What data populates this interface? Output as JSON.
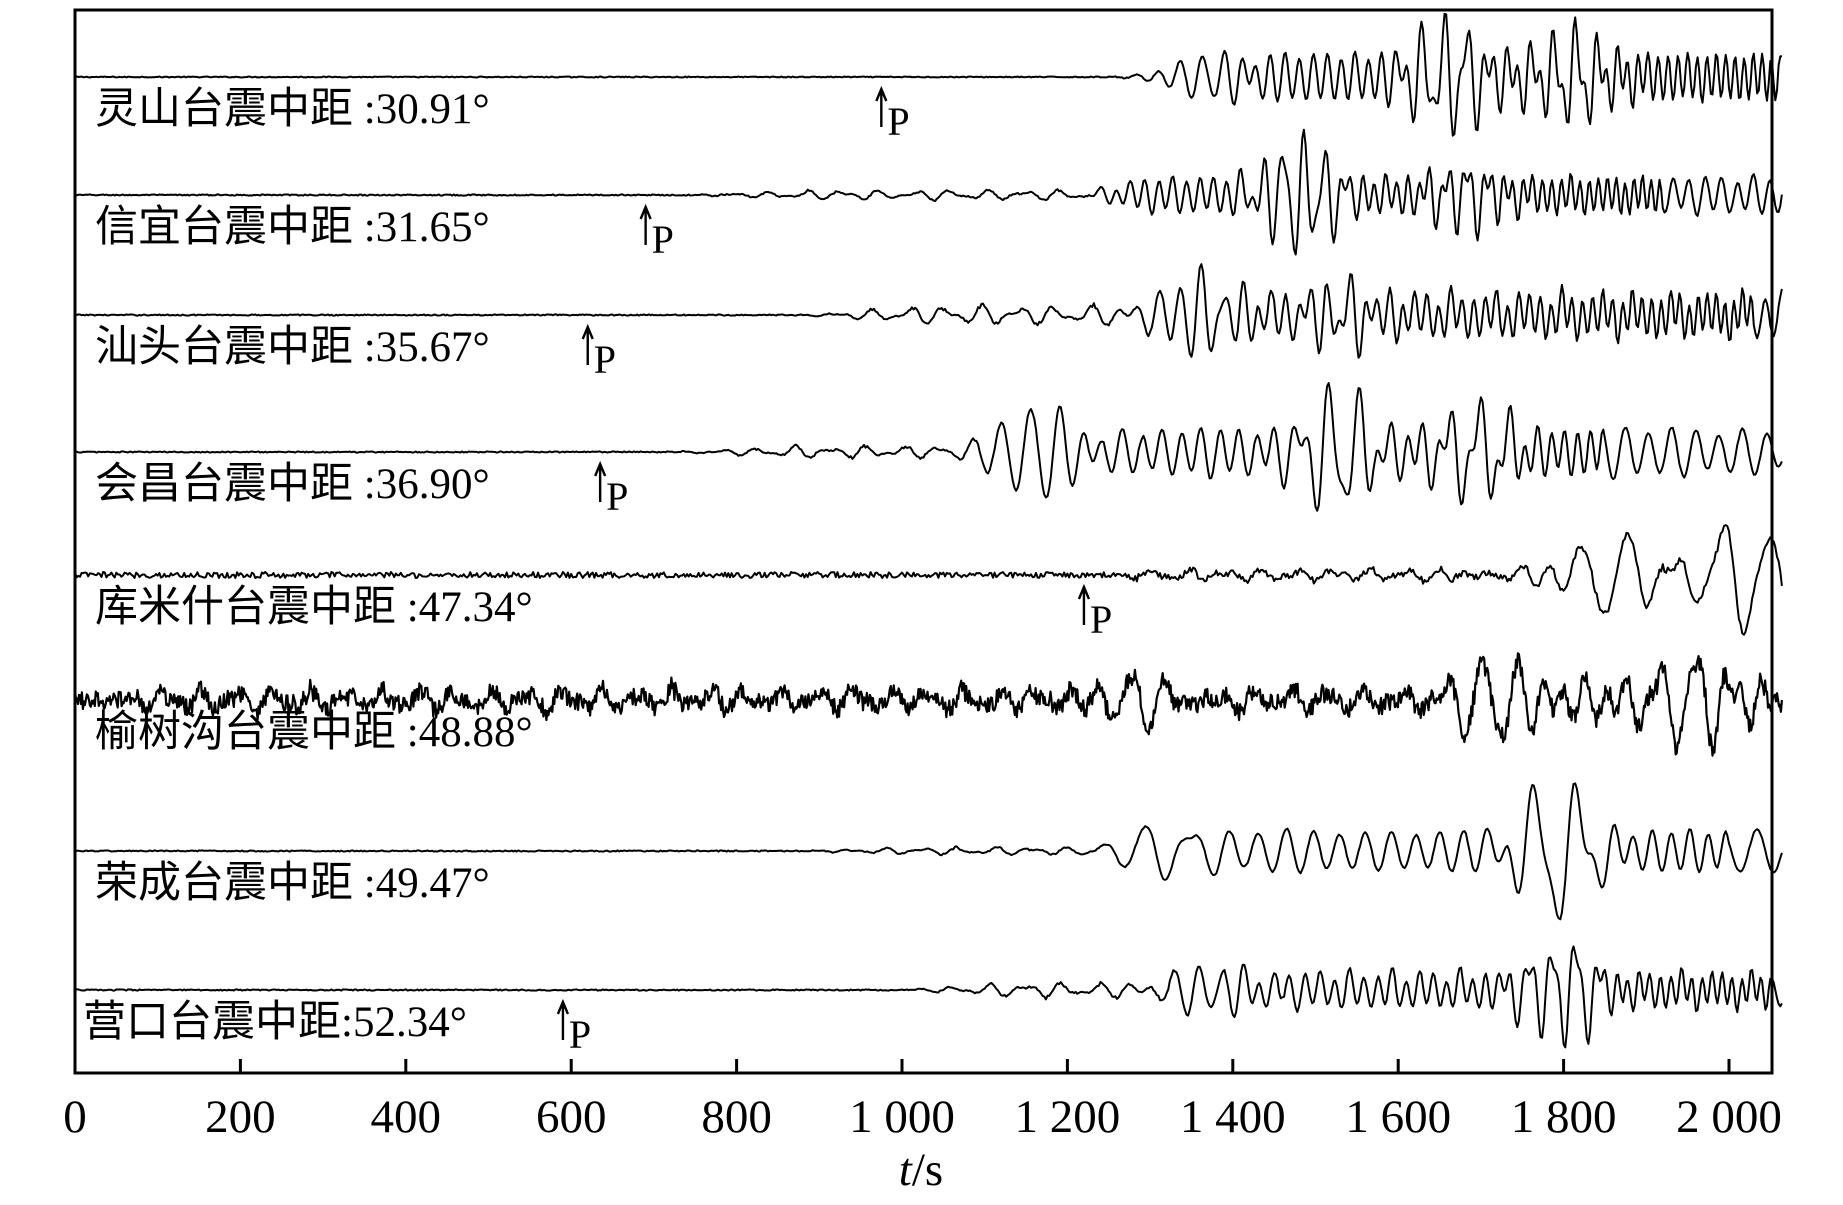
{
  "chart_data": {
    "type": "line",
    "xlabel_var": "t",
    "xlabel_unit": "/s",
    "xlim": [
      0,
      2100
    ],
    "xticks": [
      0,
      200,
      400,
      600,
      800,
      1000,
      1200,
      1400,
      1600,
      1800,
      2000
    ],
    "xtick_labels": [
      "0",
      "200",
      "400",
      "600",
      "800",
      "1 000",
      "1 200",
      "1 400",
      "1 600",
      "1 800",
      "2 000"
    ],
    "p_marker_text": "P",
    "traces": [
      {
        "label": "灵山台震中距 :30.91°",
        "p_arrival": 975,
        "onset": 1250,
        "surface": 1360,
        "surface_period": 28,
        "pre_amp": 3,
        "amp": 40,
        "noise": 0.5,
        "bursts": [
          [
            1370,
            22
          ],
          [
            1660,
            48
          ],
          [
            1810,
            38
          ]
        ]
      },
      {
        "label": "信宜台震中距 :31.65°",
        "p_arrival": 690,
        "onset": 740,
        "surface": 1220,
        "surface_period": 26,
        "pre_amp": 4,
        "amp": 30,
        "noise": 0.6,
        "bursts": [
          [
            1480,
            50
          ],
          [
            1680,
            30
          ]
        ]
      },
      {
        "label": "汕头台震中距 :35.67°",
        "p_arrival": 620,
        "onset": 880,
        "surface": 1330,
        "surface_period": 27,
        "pre_amp": 8,
        "amp": 34,
        "noise": 0.6,
        "bursts": [
          [
            1360,
            38
          ],
          [
            1530,
            30
          ]
        ]
      },
      {
        "label": "会昌台震中距 :36.90°",
        "p_arrival": 635,
        "onset": 720,
        "surface": 1150,
        "surface_period": 38,
        "pre_amp": 5,
        "amp": 38,
        "noise": 0.6,
        "bursts": [
          [
            1160,
            50
          ],
          [
            1530,
            58
          ],
          [
            1700,
            42
          ]
        ]
      },
      {
        "label": "库米什台震中距 :47.34°",
        "p_arrival": 1220,
        "onset": 1210,
        "surface": 1620,
        "surface_period": 60,
        "pre_amp": 5,
        "amp": 12,
        "noise": 3,
        "bursts": [
          [
            1860,
            40
          ],
          [
            2010,
            55
          ]
        ]
      },
      {
        "label": "榆树沟台震中距 :48.88°",
        "p_arrival": null,
        "onset": 0,
        "surface": 1700,
        "surface_period": 45,
        "pre_amp": 9,
        "amp": 24,
        "noise": 9,
        "bursts": [
          [
            1290,
            36
          ],
          [
            1710,
            42
          ],
          [
            1950,
            38
          ]
        ]
      },
      {
        "label": "荣成台震中距 :49.47°",
        "p_arrival": null,
        "onset": 870,
        "surface": 1300,
        "surface_period": 55,
        "pre_amp": 3,
        "amp": 34,
        "noise": 0.6,
        "bursts": [
          [
            1320,
            30
          ],
          [
            1790,
            65
          ]
        ]
      },
      {
        "label": "营口台震中距:52.34°",
        "p_arrival": 590,
        "onset": 990,
        "surface": 1350,
        "surface_period": 30,
        "pre_amp": 6,
        "amp": 28,
        "noise": 0.6,
        "bursts": [
          [
            1370,
            26
          ],
          [
            1800,
            44
          ]
        ]
      }
    ]
  }
}
